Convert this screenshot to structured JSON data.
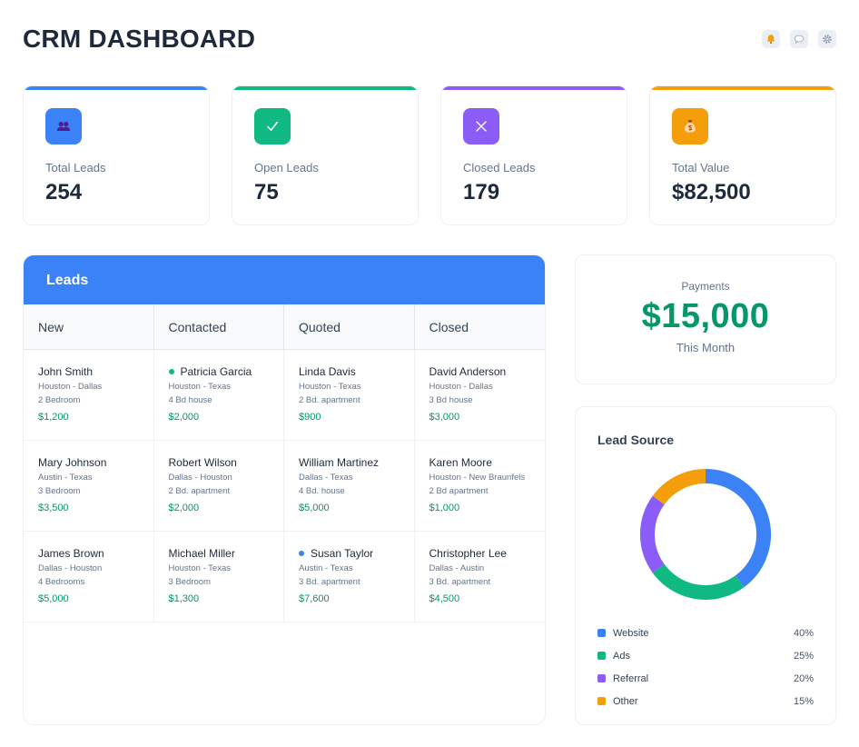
{
  "page": {
    "title": "CRM DASHBOARD"
  },
  "top_icons": [
    {
      "name": "bell-icon",
      "color": "#f59e0b"
    },
    {
      "name": "chat-icon",
      "color": "#94a3b8"
    },
    {
      "name": "gear-icon",
      "color": "#94a3b8"
    }
  ],
  "stats": [
    {
      "label": "Total Leads",
      "value": "254",
      "color": "#3b82f6",
      "icon": "users-icon"
    },
    {
      "label": "Open Leads",
      "value": "75",
      "color": "#10b981",
      "icon": "check-icon"
    },
    {
      "label": "Closed Leads",
      "value": "179",
      "color": "#8b5cf6",
      "icon": "x-icon"
    },
    {
      "label": "Total Value",
      "value": "$82,500",
      "color": "#f59e0b",
      "icon": "money-bag-icon"
    }
  ],
  "leads": {
    "title": "Leads",
    "columns": [
      "New",
      "Contacted",
      "Quoted",
      "Closed"
    ],
    "rows": [
      [
        {
          "name": "John Smith",
          "location": "Houston - Dallas",
          "detail": "2 Bedroom",
          "price": "$1,200",
          "dot": ""
        },
        {
          "name": "Patricia Garcia",
          "location": "Houston - Texas",
          "detail": "4 Bd house",
          "price": "$2,000",
          "dot": "#10b981"
        },
        {
          "name": "Linda Davis",
          "location": "Houston - Texas",
          "detail": "2 Bd. apartment",
          "price": "$900",
          "dot": ""
        },
        {
          "name": "David Anderson",
          "location": "Houston - Dallas",
          "detail": "3 Bd house",
          "price": "$3,000",
          "dot": ""
        }
      ],
      [
        {
          "name": "Mary Johnson",
          "location": "Austin - Texas",
          "detail": "3 Bedroom",
          "price": "$3,500",
          "dot": ""
        },
        {
          "name": "Robert Wilson",
          "location": "Dallas - Houston",
          "detail": "2 Bd. apartment",
          "price": "$2,000",
          "dot": ""
        },
        {
          "name": "William Martinez",
          "location": "Dallas - Texas",
          "detail": "4 Bd. house",
          "price": "$5,000",
          "dot": ""
        },
        {
          "name": "Karen Moore",
          "location": "Houston - New Braunfels",
          "detail": "2 Bd apartment",
          "price": "$1,000",
          "dot": ""
        }
      ],
      [
        {
          "name": "James Brown",
          "location": "Dallas - Houston",
          "detail": "4 Bedrooms",
          "price": "$5,000",
          "dot": ""
        },
        {
          "name": "Michael Miller",
          "location": "Houston - Texas",
          "detail": "3 Bedroom",
          "price": "$1,300",
          "dot": ""
        },
        {
          "name": "Susan Taylor",
          "location": "Austin - Texas",
          "detail": "3 Bd. apartment",
          "price": "$7,600",
          "dot": "#3b82f6"
        },
        {
          "name": "Christopher Lee",
          "location": "Dallas - Austin",
          "detail": "3 Bd. apartment",
          "price": "$4,500",
          "dot": ""
        }
      ]
    ]
  },
  "payments": {
    "label": "Payments",
    "value": "$15,000",
    "period": "This Month"
  },
  "lead_source": {
    "title": "Lead Source",
    "items": [
      {
        "name": "Website",
        "pct": "40%",
        "value": 40,
        "color": "#3b82f6"
      },
      {
        "name": "Ads",
        "pct": "25%",
        "value": 25,
        "color": "#10b981"
      },
      {
        "name": "Referral",
        "pct": "20%",
        "value": 20,
        "color": "#8b5cf6"
      },
      {
        "name": "Other",
        "pct": "15%",
        "value": 15,
        "color": "#f59e0b"
      }
    ]
  }
}
